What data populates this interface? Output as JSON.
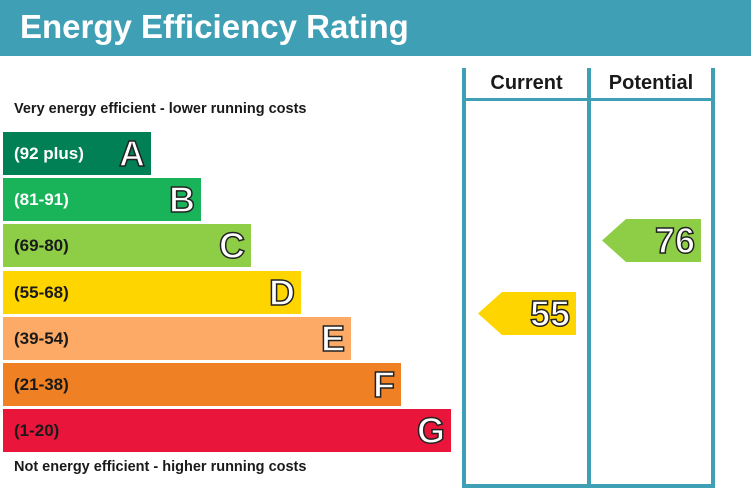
{
  "title": "Energy Efficiency Rating",
  "top_caption": "Very energy efficient - lower running costs",
  "bottom_caption": "Not energy efficient - higher running costs",
  "columns": {
    "current": "Current",
    "potential": "Potential"
  },
  "chart_data": {
    "type": "bar",
    "categories": [
      "A",
      "B",
      "C",
      "D",
      "E",
      "F",
      "G"
    ],
    "ranges": [
      "(92 plus)",
      "(81-91)",
      "(69-80)",
      "(55-68)",
      "(39-54)",
      "(21-38)",
      "(1-20)"
    ],
    "colors": [
      "#008054",
      "#19b459",
      "#8dce46",
      "#ffd500",
      "#fcaa65",
      "#ef8023",
      "#e9153b"
    ],
    "current": {
      "value": "55",
      "rating": "D",
      "color": "#ffd500"
    },
    "potential": {
      "value": "76",
      "rating": "C",
      "color": "#8dce46"
    }
  }
}
